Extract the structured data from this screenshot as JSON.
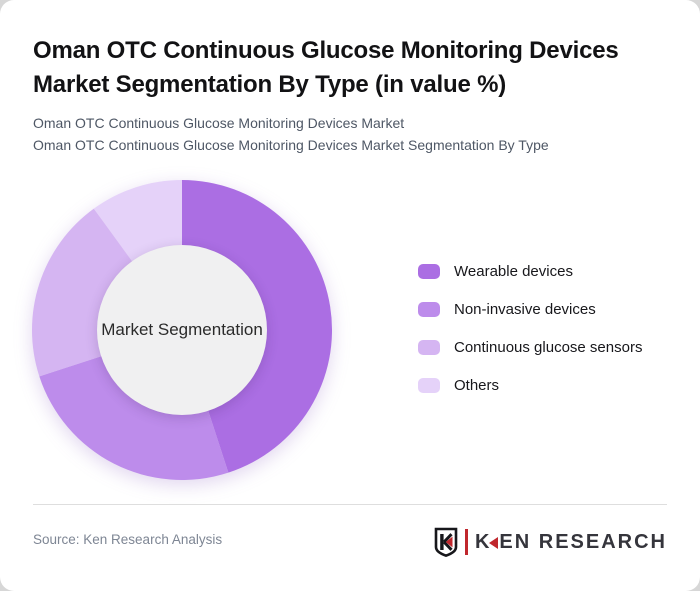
{
  "page": {
    "background_color": "#d7d7d7",
    "card_color": "#ffffff"
  },
  "header": {
    "title": "Oman OTC Continuous Glucose Monitoring Devices Market Segmentation By Type (in value %)",
    "subtitle_line1": "Oman OTC Continuous Glucose Monitoring Devices Market",
    "subtitle_line2": "Oman OTC Continuous Glucose Monitoring Devices Market Segmentation By Type"
  },
  "chart_data": {
    "type": "pie",
    "donut": true,
    "title": "Oman OTC Continuous Glucose Monitoring Devices Market Segmentation By Type (in value %)",
    "units": "value %",
    "center_label": "Market Segmentation",
    "start_angle_deg": 0,
    "direction": "clockwise",
    "legend_position": "right",
    "series": [
      {
        "name": "Wearable devices",
        "value": 45,
        "color": "#ab6ee3"
      },
      {
        "name": "Non-invasive devices",
        "value": 25,
        "color": "#bd8ceb"
      },
      {
        "name": "Continuous glucose sensors",
        "value": 20,
        "color": "#d5b5f2"
      },
      {
        "name": "Others",
        "value": 10,
        "color": "#e5d2f9"
      }
    ]
  },
  "footer": {
    "source": "Source: Ken Research Analysis",
    "logo": {
      "monogram": "K",
      "brand_part1": "K",
      "brand_part2": "EN RESEARCH",
      "accent_color": "#c0272d"
    }
  }
}
